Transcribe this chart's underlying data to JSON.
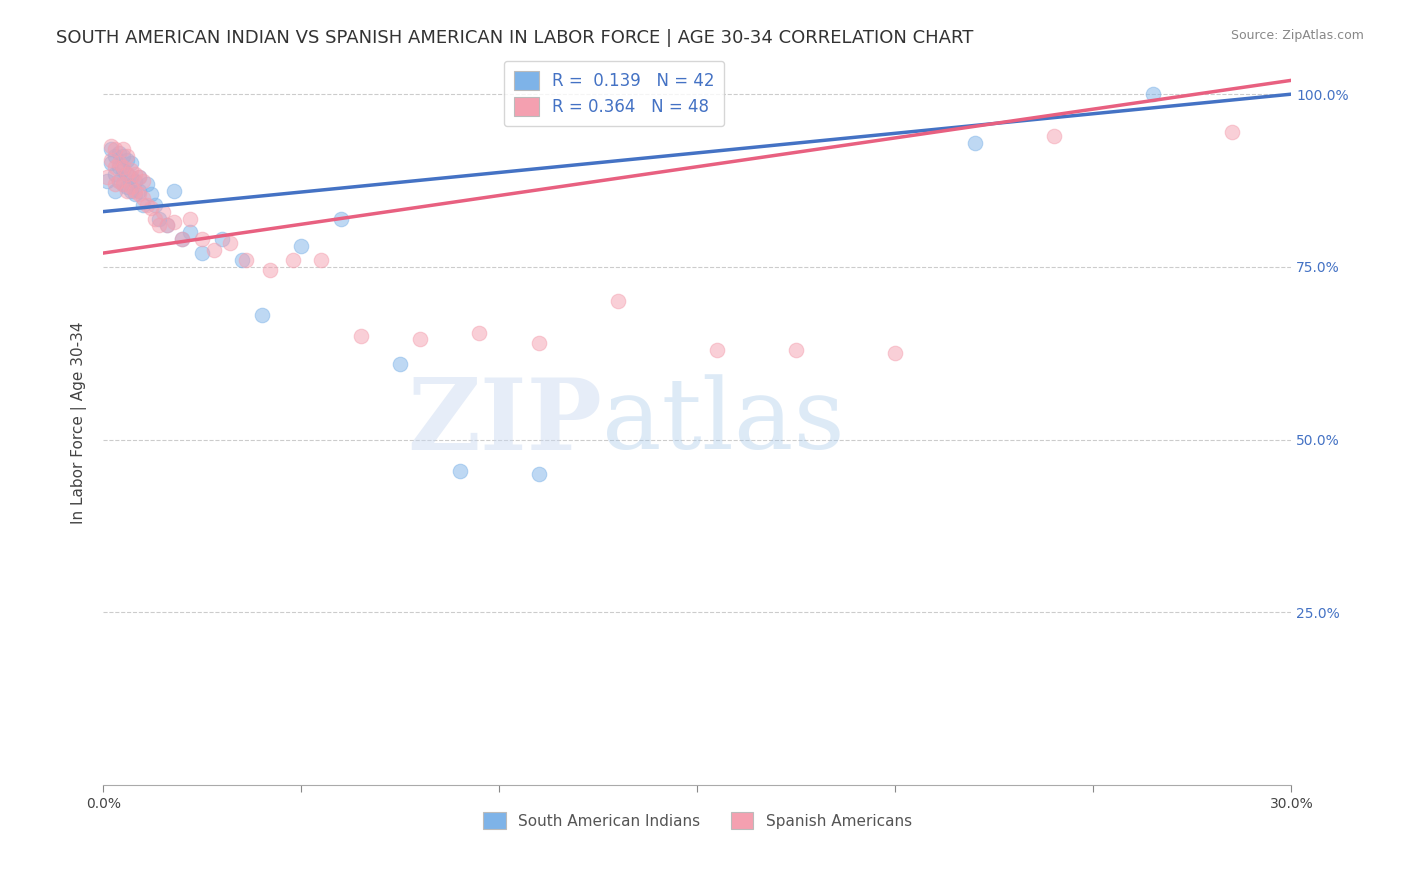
{
  "title": "SOUTH AMERICAN INDIAN VS SPANISH AMERICAN IN LABOR FORCE | AGE 30-34 CORRELATION CHART",
  "source": "Source: ZipAtlas.com",
  "ylabel": "In Labor Force | Age 30-34",
  "xlim": [
    0.0,
    0.3
  ],
  "ylim": [
    0.0,
    1.05
  ],
  "x_ticks": [
    0.0,
    0.05,
    0.1,
    0.15,
    0.2,
    0.25,
    0.3
  ],
  "x_tick_labels": [
    "0.0%",
    "",
    "",
    "",
    "",
    "",
    "30.0%"
  ],
  "y_ticks": [
    0.0,
    0.25,
    0.5,
    0.75,
    1.0
  ],
  "y_tick_labels": [
    "",
    "25.0%",
    "50.0%",
    "75.0%",
    "100.0%"
  ],
  "blue_color": "#7EB3E8",
  "pink_color": "#F4A0B0",
  "blue_line_color": "#4472C4",
  "pink_line_color": "#E86080",
  "legend_blue_label": "R =  0.139   N = 42",
  "legend_pink_label": "R = 0.364   N = 48",
  "legend_series1": "South American Indians",
  "legend_series2": "Spanish Americans",
  "watermark": "ZIPatlas",
  "blue_scatter_x": [
    0.001,
    0.002,
    0.002,
    0.003,
    0.003,
    0.003,
    0.004,
    0.004,
    0.004,
    0.005,
    0.005,
    0.005,
    0.006,
    0.006,
    0.006,
    0.007,
    0.007,
    0.007,
    0.008,
    0.008,
    0.009,
    0.009,
    0.01,
    0.011,
    0.012,
    0.013,
    0.014,
    0.016,
    0.018,
    0.02,
    0.022,
    0.025,
    0.03,
    0.035,
    0.04,
    0.05,
    0.06,
    0.075,
    0.09,
    0.11,
    0.22,
    0.265
  ],
  "blue_scatter_y": [
    0.875,
    0.9,
    0.92,
    0.86,
    0.885,
    0.91,
    0.875,
    0.895,
    0.915,
    0.87,
    0.89,
    0.91,
    0.865,
    0.885,
    0.905,
    0.86,
    0.88,
    0.9,
    0.855,
    0.875,
    0.86,
    0.88,
    0.84,
    0.87,
    0.855,
    0.84,
    0.82,
    0.81,
    0.86,
    0.79,
    0.8,
    0.77,
    0.79,
    0.76,
    0.68,
    0.78,
    0.82,
    0.61,
    0.455,
    0.45,
    0.93,
    1.0
  ],
  "pink_scatter_x": [
    0.001,
    0.002,
    0.002,
    0.003,
    0.003,
    0.003,
    0.004,
    0.004,
    0.005,
    0.005,
    0.005,
    0.006,
    0.006,
    0.006,
    0.007,
    0.007,
    0.008,
    0.008,
    0.009,
    0.009,
    0.01,
    0.01,
    0.011,
    0.012,
    0.013,
    0.014,
    0.015,
    0.016,
    0.018,
    0.02,
    0.022,
    0.025,
    0.028,
    0.032,
    0.036,
    0.042,
    0.048,
    0.055,
    0.065,
    0.08,
    0.095,
    0.11,
    0.13,
    0.155,
    0.175,
    0.2,
    0.24,
    0.285
  ],
  "pink_scatter_y": [
    0.88,
    0.905,
    0.925,
    0.87,
    0.895,
    0.92,
    0.875,
    0.9,
    0.87,
    0.895,
    0.92,
    0.86,
    0.885,
    0.91,
    0.865,
    0.89,
    0.86,
    0.885,
    0.855,
    0.88,
    0.85,
    0.875,
    0.84,
    0.835,
    0.82,
    0.81,
    0.83,
    0.81,
    0.815,
    0.79,
    0.82,
    0.79,
    0.775,
    0.785,
    0.76,
    0.745,
    0.76,
    0.76,
    0.65,
    0.645,
    0.655,
    0.64,
    0.7,
    0.63,
    0.63,
    0.625,
    0.94,
    0.945
  ],
  "grid_color": "#CCCCCC",
  "background_color": "#FFFFFF",
  "right_tick_color": "#4472C4",
  "title_fontsize": 13,
  "axis_label_fontsize": 11,
  "tick_fontsize": 10,
  "scatter_size": 110,
  "scatter_alpha": 0.5,
  "scatter_linewidth": 0.8
}
